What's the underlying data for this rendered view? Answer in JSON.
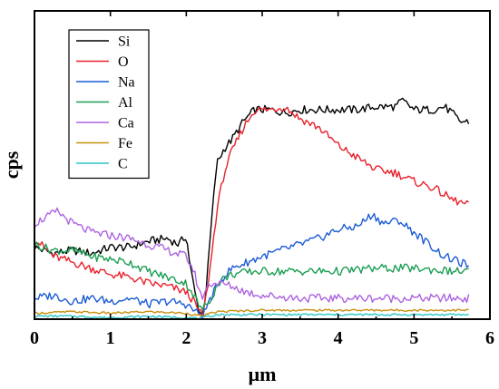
{
  "chart_data": {
    "type": "line",
    "xlabel": "μm",
    "ylabel": "cps",
    "xlim": [
      0,
      6
    ],
    "ylim": [
      0,
      100
    ],
    "xticks": [
      "0",
      "1",
      "2",
      "3",
      "4",
      "5",
      "6"
    ],
    "grid": false,
    "legend_position": "top-left",
    "series": [
      {
        "name": "Si",
        "color": "#000000",
        "x": [
          0,
          0.25,
          0.5,
          0.75,
          1.0,
          1.25,
          1.5,
          1.75,
          1.9,
          2.0,
          2.05,
          2.12,
          2.18,
          2.22,
          2.27,
          2.33,
          2.4,
          2.5,
          2.6,
          2.75,
          2.9,
          3.1,
          3.3,
          3.5,
          3.75,
          4.0,
          4.25,
          4.5,
          4.75,
          4.85,
          5.0,
          5.25,
          5.4,
          5.5,
          5.6,
          5.72
        ],
        "y": [
          24,
          22,
          23,
          22,
          24,
          24,
          26,
          27,
          25,
          28,
          18,
          8,
          2,
          2,
          12,
          32,
          52,
          57,
          60,
          66,
          70,
          70,
          69,
          70,
          70,
          70,
          70,
          71,
          71,
          73,
          70,
          70,
          71,
          69,
          66,
          66
        ]
      },
      {
        "name": "O",
        "color": "#e8202a",
        "x": [
          0,
          0.25,
          0.5,
          0.75,
          1.0,
          1.25,
          1.5,
          1.75,
          2.0,
          2.1,
          2.18,
          2.22,
          2.3,
          2.4,
          2.5,
          2.6,
          2.75,
          2.9,
          3.1,
          3.3,
          3.5,
          3.75,
          4.0,
          4.25,
          4.5,
          4.75,
          5.0,
          5.25,
          5.5,
          5.72
        ],
        "y": [
          27,
          21,
          19,
          17,
          15,
          14,
          12,
          11,
          9,
          6,
          2,
          1,
          14,
          36,
          49,
          56,
          64,
          70,
          70,
          71,
          67,
          64,
          58,
          54,
          50,
          49,
          46,
          44,
          40,
          38
        ]
      },
      {
        "name": "Na",
        "color": "#1c5bd6",
        "x": [
          0,
          0.25,
          0.5,
          0.75,
          1.0,
          1.25,
          1.5,
          1.75,
          2.0,
          2.15,
          2.22,
          2.3,
          2.45,
          2.6,
          2.8,
          3.0,
          3.25,
          3.5,
          3.75,
          4.0,
          4.25,
          4.45,
          4.6,
          4.8,
          5.0,
          5.2,
          5.4,
          5.6,
          5.72
        ],
        "y": [
          7,
          8,
          6,
          7,
          6,
          7,
          5,
          6,
          5,
          2,
          1,
          6,
          13,
          17,
          19,
          21,
          23,
          25,
          27,
          30,
          31,
          35,
          32,
          33,
          29,
          25,
          21,
          19,
          18
        ]
      },
      {
        "name": "Al",
        "color": "#1a9e53",
        "x": [
          0,
          0.25,
          0.5,
          0.75,
          1.0,
          1.25,
          1.5,
          1.75,
          2.0,
          2.1,
          2.2,
          2.3,
          2.45,
          2.6,
          2.9,
          3.25,
          3.5,
          4.0,
          4.5,
          5.0,
          5.5,
          5.72
        ],
        "y": [
          25,
          23,
          23,
          21,
          20,
          19,
          16,
          14,
          12,
          8,
          3,
          6,
          13,
          15,
          16,
          16,
          16,
          16,
          17,
          17,
          16,
          16
        ]
      },
      {
        "name": "Ca",
        "color": "#ad63e0",
        "x": [
          0,
          0.15,
          0.3,
          0.5,
          0.75,
          1.0,
          1.25,
          1.5,
          1.75,
          2.0,
          2.1,
          2.2,
          2.3,
          2.45,
          2.6,
          2.8,
          3.0,
          3.5,
          4.0,
          4.5,
          5.0,
          5.5,
          5.72
        ],
        "y": [
          32,
          34,
          36,
          32,
          29,
          28,
          27,
          25,
          23,
          21,
          16,
          7,
          12,
          12,
          11,
          9,
          8,
          7,
          7,
          7,
          7,
          7,
          7
        ]
      },
      {
        "name": "Fe",
        "color": "#c8900c",
        "x": [
          0,
          0.5,
          1.0,
          1.5,
          2.0,
          2.2,
          2.4,
          3.0,
          3.5,
          4.0,
          4.5,
          5.0,
          5.5,
          5.72
        ],
        "y": [
          2,
          2.5,
          2,
          2.5,
          2,
          1,
          2.5,
          3,
          3,
          3,
          3,
          3,
          3,
          3
        ]
      },
      {
        "name": "C",
        "color": "#2bc6c6",
        "x": [
          0,
          0.5,
          1.0,
          1.5,
          2.0,
          2.2,
          2.4,
          3.0,
          3.5,
          4.0,
          4.5,
          5.0,
          5.5,
          5.72
        ],
        "y": [
          1,
          1,
          0.5,
          1,
          0.5,
          0.3,
          1.5,
          1.5,
          1.5,
          1.5,
          1.5,
          1.5,
          1.5,
          1.5
        ]
      }
    ]
  }
}
